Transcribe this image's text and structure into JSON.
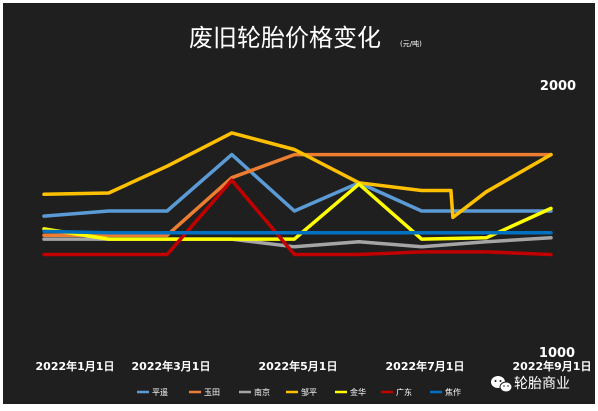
{
  "chart_data": {
    "type": "line",
    "title": "废旧轮胎价格变化",
    "title_unit": "(元/吨)",
    "x_ticks": [
      "2022年1月1日",
      "2022年3月1日",
      "2022年5月1日",
      "2022年7月1日",
      "2022年9月1日"
    ],
    "y_ticks": [
      "2000",
      "1000"
    ],
    "ylim": [
      1000,
      2000
    ],
    "grid": false,
    "legend_position": "bottom",
    "series": [
      {
        "name": "平遥",
        "color": "#5b9bd5",
        "points": [
          [
            "2022-01-01",
            1570
          ],
          [
            "2022-02-01",
            1590
          ],
          [
            "2022-03-01",
            1590
          ],
          [
            "2022-04-01",
            1810
          ],
          [
            "2022-05-01",
            1590
          ],
          [
            "2022-06-01",
            1700
          ],
          [
            "2022-07-01",
            1590
          ],
          [
            "2022-08-01",
            1590
          ],
          [
            "2022-09-01",
            1590
          ]
        ]
      },
      {
        "name": "玉田",
        "color": "#ed7d31",
        "points": [
          [
            "2022-01-01",
            1495
          ],
          [
            "2022-02-01",
            1495
          ],
          [
            "2022-03-01",
            1495
          ],
          [
            "2022-04-01",
            1720
          ],
          [
            "2022-05-01",
            1810
          ],
          [
            "2022-06-01",
            1810
          ],
          [
            "2022-07-01",
            1810
          ],
          [
            "2022-08-01",
            1810
          ],
          [
            "2022-09-01",
            1810
          ]
        ]
      },
      {
        "name": "南京",
        "color": "#a5a5a5",
        "points": [
          [
            "2022-01-01",
            1480
          ],
          [
            "2022-02-01",
            1480
          ],
          [
            "2022-03-01",
            1480
          ],
          [
            "2022-04-01",
            1480
          ],
          [
            "2022-05-01",
            1450
          ],
          [
            "2022-06-01",
            1470
          ],
          [
            "2022-07-01",
            1450
          ],
          [
            "2022-08-01",
            1470
          ],
          [
            "2022-09-01",
            1485
          ]
        ]
      },
      {
        "name": "邹平",
        "color": "#ffc000",
        "points": [
          [
            "2022-01-01",
            1655
          ],
          [
            "2022-02-01",
            1660
          ],
          [
            "2022-03-01",
            1765
          ],
          [
            "2022-04-01",
            1895
          ],
          [
            "2022-05-01",
            1830
          ],
          [
            "2022-06-01",
            1700
          ],
          [
            "2022-07-01",
            1670
          ],
          [
            "2022-07-15",
            1670
          ],
          [
            "2022-07-16",
            1565
          ],
          [
            "2022-08-01",
            1665
          ],
          [
            "2022-09-01",
            1810
          ]
        ]
      },
      {
        "name": "金华",
        "color": "#ffff00",
        "points": [
          [
            "2022-01-01",
            1520
          ],
          [
            "2022-02-01",
            1480
          ],
          [
            "2022-03-01",
            1480
          ],
          [
            "2022-04-01",
            1480
          ],
          [
            "2022-05-01",
            1480
          ],
          [
            "2022-06-01",
            1695
          ],
          [
            "2022-07-01",
            1480
          ],
          [
            "2022-08-01",
            1485
          ],
          [
            "2022-09-01",
            1600
          ]
        ]
      },
      {
        "name": "广东",
        "color": "#c00000",
        "points": [
          [
            "2022-01-01",
            1420
          ],
          [
            "2022-02-01",
            1420
          ],
          [
            "2022-03-01",
            1420
          ],
          [
            "2022-04-01",
            1710
          ],
          [
            "2022-05-01",
            1420
          ],
          [
            "2022-06-01",
            1420
          ],
          [
            "2022-07-01",
            1430
          ],
          [
            "2022-08-01",
            1430
          ],
          [
            "2022-09-01",
            1420
          ]
        ]
      },
      {
        "name": "焦作",
        "color": "#0070c0",
        "points": [
          [
            "2022-01-01",
            1510
          ],
          [
            "2022-02-01",
            1505
          ],
          [
            "2022-03-01",
            1505
          ],
          [
            "2022-04-01",
            1505
          ],
          [
            "2022-05-01",
            1505
          ],
          [
            "2022-06-01",
            1505
          ],
          [
            "2022-07-01",
            1505
          ],
          [
            "2022-08-01",
            1505
          ],
          [
            "2022-09-01",
            1505
          ]
        ]
      }
    ]
  },
  "watermark": {
    "text": "轮胎商业",
    "icon": "wechat-icon"
  }
}
